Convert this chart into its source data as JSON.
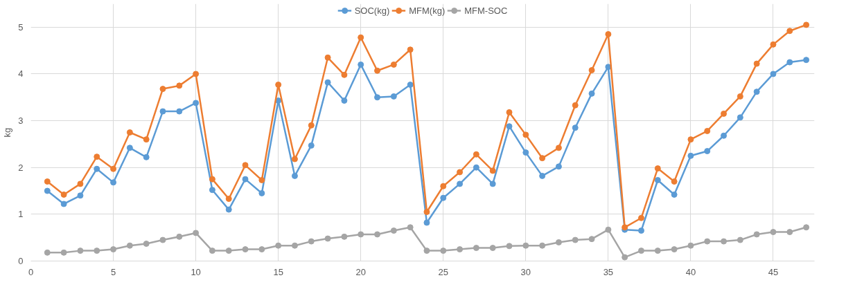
{
  "chart_data": {
    "type": "line",
    "ylabel": "kg",
    "x": [
      1,
      2,
      3,
      4,
      5,
      6,
      7,
      8,
      9,
      10,
      11,
      12,
      13,
      14,
      15,
      16,
      17,
      18,
      19,
      20,
      21,
      22,
      23,
      24,
      25,
      26,
      27,
      28,
      29,
      30,
      31,
      32,
      33,
      34,
      35,
      36,
      37,
      38,
      39,
      40,
      41,
      42,
      43,
      44,
      45,
      46,
      47
    ],
    "series": [
      {
        "name": "SOC(kg)",
        "color": "#5b9bd5",
        "values": [
          1.5,
          1.22,
          1.4,
          1.97,
          1.68,
          2.42,
          2.22,
          3.2,
          3.2,
          3.38,
          1.52,
          1.1,
          1.75,
          1.45,
          3.43,
          1.82,
          2.47,
          3.82,
          3.43,
          4.2,
          3.5,
          3.52,
          3.77,
          0.82,
          1.35,
          1.65,
          2.0,
          1.65,
          2.88,
          2.32,
          1.82,
          2.02,
          2.85,
          3.58,
          4.15,
          0.67,
          0.65,
          1.73,
          1.42,
          2.25,
          2.35,
          2.68,
          3.07,
          3.62,
          4.0,
          4.25,
          4.3
        ]
      },
      {
        "name": "MFM(kg)",
        "color": "#ed7d31",
        "values": [
          1.7,
          1.42,
          1.65,
          2.23,
          1.97,
          2.75,
          2.6,
          3.68,
          3.75,
          4.0,
          1.75,
          1.33,
          2.05,
          1.73,
          3.77,
          2.18,
          2.9,
          4.35,
          3.98,
          4.78,
          4.07,
          4.2,
          4.52,
          1.05,
          1.6,
          1.9,
          2.28,
          1.93,
          3.18,
          2.7,
          2.2,
          2.42,
          3.33,
          4.08,
          4.85,
          0.72,
          0.92,
          1.98,
          1.7,
          2.6,
          2.78,
          3.15,
          3.52,
          4.22,
          4.63,
          4.92,
          5.05
        ]
      },
      {
        "name": "MFM-SOC",
        "color": "#a5a5a5",
        "values": [
          0.18,
          0.18,
          0.22,
          0.22,
          0.25,
          0.33,
          0.37,
          0.45,
          0.52,
          0.6,
          0.22,
          0.22,
          0.25,
          0.25,
          0.33,
          0.33,
          0.42,
          0.48,
          0.52,
          0.57,
          0.57,
          0.65,
          0.72,
          0.22,
          0.22,
          0.25,
          0.28,
          0.28,
          0.32,
          0.33,
          0.33,
          0.4,
          0.45,
          0.47,
          0.67,
          0.08,
          0.22,
          0.22,
          0.25,
          0.33,
          0.42,
          0.42,
          0.45,
          0.57,
          0.62,
          0.62,
          0.72
        ]
      }
    ],
    "xlim": [
      0,
      47.5
    ],
    "xticks": [
      0,
      5,
      10,
      15,
      20,
      25,
      30,
      35,
      40,
      45
    ],
    "ylim": [
      0,
      5.5
    ],
    "yticks": [
      0,
      1,
      2,
      3,
      4,
      5
    ],
    "grid": true,
    "legend": "top",
    "marker": "circle",
    "line_style": "solid"
  }
}
